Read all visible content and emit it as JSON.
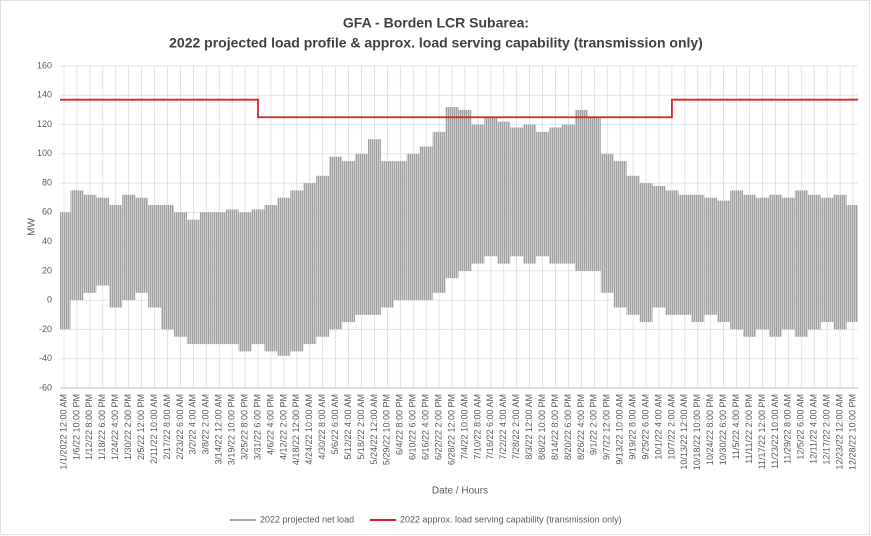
{
  "chart_data": {
    "type": "line",
    "title": [
      "GFA - Borden LCR Subarea:",
      "2022 projected load profile & approx. load serving capability (transmission only)"
    ],
    "x_label": "Date / Hours",
    "y_label": "MW",
    "categories": [
      "1/1/2022 12:00 AM",
      "1/6/22 10:00 PM",
      "1/12/22 8:00 PM",
      "1/18/22 6:00 PM",
      "1/24/22 4:00 PM",
      "1/30/22 2:00 PM",
      "2/5/22 12:00 PM",
      "2/11/22 10:00 AM",
      "2/17/22 8:00 AM",
      "2/23/22 6:00 AM",
      "3/2/22 4:00 AM",
      "3/8/22 2:00 AM",
      "3/14/22 12:00 AM",
      "3/19/22 10:00 PM",
      "3/25/22 8:00 PM",
      "3/31/22 6:00 PM",
      "4/6/22 4:00 PM",
      "4/12/22 2:00 PM",
      "4/18/22 12:00 PM",
      "4/24/22 10:00 AM",
      "4/30/22 8:00 AM",
      "5/6/22 6:00 AM",
      "5/12/22 4:00 AM",
      "5/18/22 2:00 AM",
      "5/24/22 12:00 AM",
      "5/29/22 10:00 PM",
      "6/4/22 8:00 PM",
      "6/10/22 6:00 PM",
      "6/16/22 4:00 PM",
      "6/22/22 2:00 PM",
      "6/28/22 12:00 PM",
      "7/4/22 10:00 AM",
      "7/10/22 8:00 AM",
      "7/16/22 6:00 AM",
      "7/22/22 4:00 AM",
      "7/28/22 2:00 AM",
      "8/3/22 12:00 AM",
      "8/8/22 10:00 PM",
      "8/14/22 8:00 PM",
      "8/20/22 6:00 PM",
      "8/26/22 4:00 PM",
      "9/1/22 2:00 PM",
      "9/7/22 12:00 PM",
      "9/13/22 10:00 AM",
      "9/19/22 8:00 AM",
      "9/25/22 6:00 AM",
      "10/1/22 4:00 AM",
      "10/7/22 2:00 AM",
      "10/13/22 12:00 AM",
      "10/18/22 10:00 PM",
      "10/24/22 8:00 PM",
      "10/30/22 6:00 PM",
      "11/5/22 4:00 PM",
      "11/11/22 2:00 PM",
      "11/17/22 12:00 PM",
      "11/23/22 10:00 AM",
      "11/29/22 8:00 AM",
      "12/5/22 6:00 AM",
      "12/11/22 4:00 AM",
      "12/17/22 2:00 AM",
      "12/23/22 12:00 AM",
      "12/28/22 10:00 PM"
    ],
    "series": [
      {
        "name": "2022 projected net load",
        "color": "#a6a6a6",
        "values": [
          [
            -20,
            60
          ],
          [
            0,
            75
          ],
          [
            5,
            72
          ],
          [
            10,
            70
          ],
          [
            -5,
            65
          ],
          [
            0,
            72
          ],
          [
            5,
            70
          ],
          [
            -5,
            65
          ],
          [
            -20,
            65
          ],
          [
            -25,
            60
          ],
          [
            -30,
            55
          ],
          [
            -30,
            60
          ],
          [
            -30,
            60
          ],
          [
            -30,
            62
          ],
          [
            -35,
            60
          ],
          [
            -30,
            62
          ],
          [
            -35,
            65
          ],
          [
            -38,
            70
          ],
          [
            -35,
            75
          ],
          [
            -30,
            80
          ],
          [
            -25,
            85
          ],
          [
            -20,
            98
          ],
          [
            -15,
            95
          ],
          [
            -10,
            100
          ],
          [
            -10,
            110
          ],
          [
            -5,
            95
          ],
          [
            0,
            95
          ],
          [
            0,
            100
          ],
          [
            0,
            105
          ],
          [
            5,
            115
          ],
          [
            15,
            132
          ],
          [
            20,
            130
          ],
          [
            25,
            120
          ],
          [
            30,
            125
          ],
          [
            25,
            122
          ],
          [
            30,
            118
          ],
          [
            25,
            120
          ],
          [
            30,
            115
          ],
          [
            25,
            118
          ],
          [
            25,
            120
          ],
          [
            20,
            130
          ],
          [
            20,
            125
          ],
          [
            5,
            100
          ],
          [
            -5,
            95
          ],
          [
            -10,
            85
          ],
          [
            -15,
            80
          ],
          [
            -5,
            78
          ],
          [
            -10,
            75
          ],
          [
            -10,
            72
          ],
          [
            -15,
            72
          ],
          [
            -10,
            70
          ],
          [
            -15,
            68
          ],
          [
            -20,
            75
          ],
          [
            -25,
            72
          ],
          [
            -20,
            70
          ],
          [
            -25,
            72
          ],
          [
            -20,
            70
          ],
          [
            -25,
            75
          ],
          [
            -20,
            72
          ],
          [
            -15,
            70
          ],
          [
            -20,
            72
          ],
          [
            -15,
            65
          ]
        ]
      },
      {
        "name": "2022 approx. load serving  capability (transmission only)",
        "color": "#e02020",
        "values": [
          137,
          137,
          137,
          137,
          137,
          137,
          137,
          137,
          137,
          137,
          137,
          137,
          137,
          137,
          137,
          125,
          125,
          125,
          125,
          125,
          125,
          125,
          125,
          125,
          125,
          125,
          125,
          125,
          125,
          125,
          125,
          125,
          125,
          125,
          125,
          125,
          125,
          125,
          125,
          125,
          125,
          125,
          125,
          125,
          125,
          125,
          125,
          137,
          137,
          137,
          137,
          137,
          137,
          137,
          137,
          137,
          137,
          137,
          137,
          137,
          137,
          137
        ]
      }
    ],
    "ylim": [
      -60,
      160
    ],
    "yticks": [
      -60,
      -40,
      -20,
      0,
      20,
      40,
      60,
      80,
      100,
      120,
      140,
      160
    ],
    "grid": true
  }
}
